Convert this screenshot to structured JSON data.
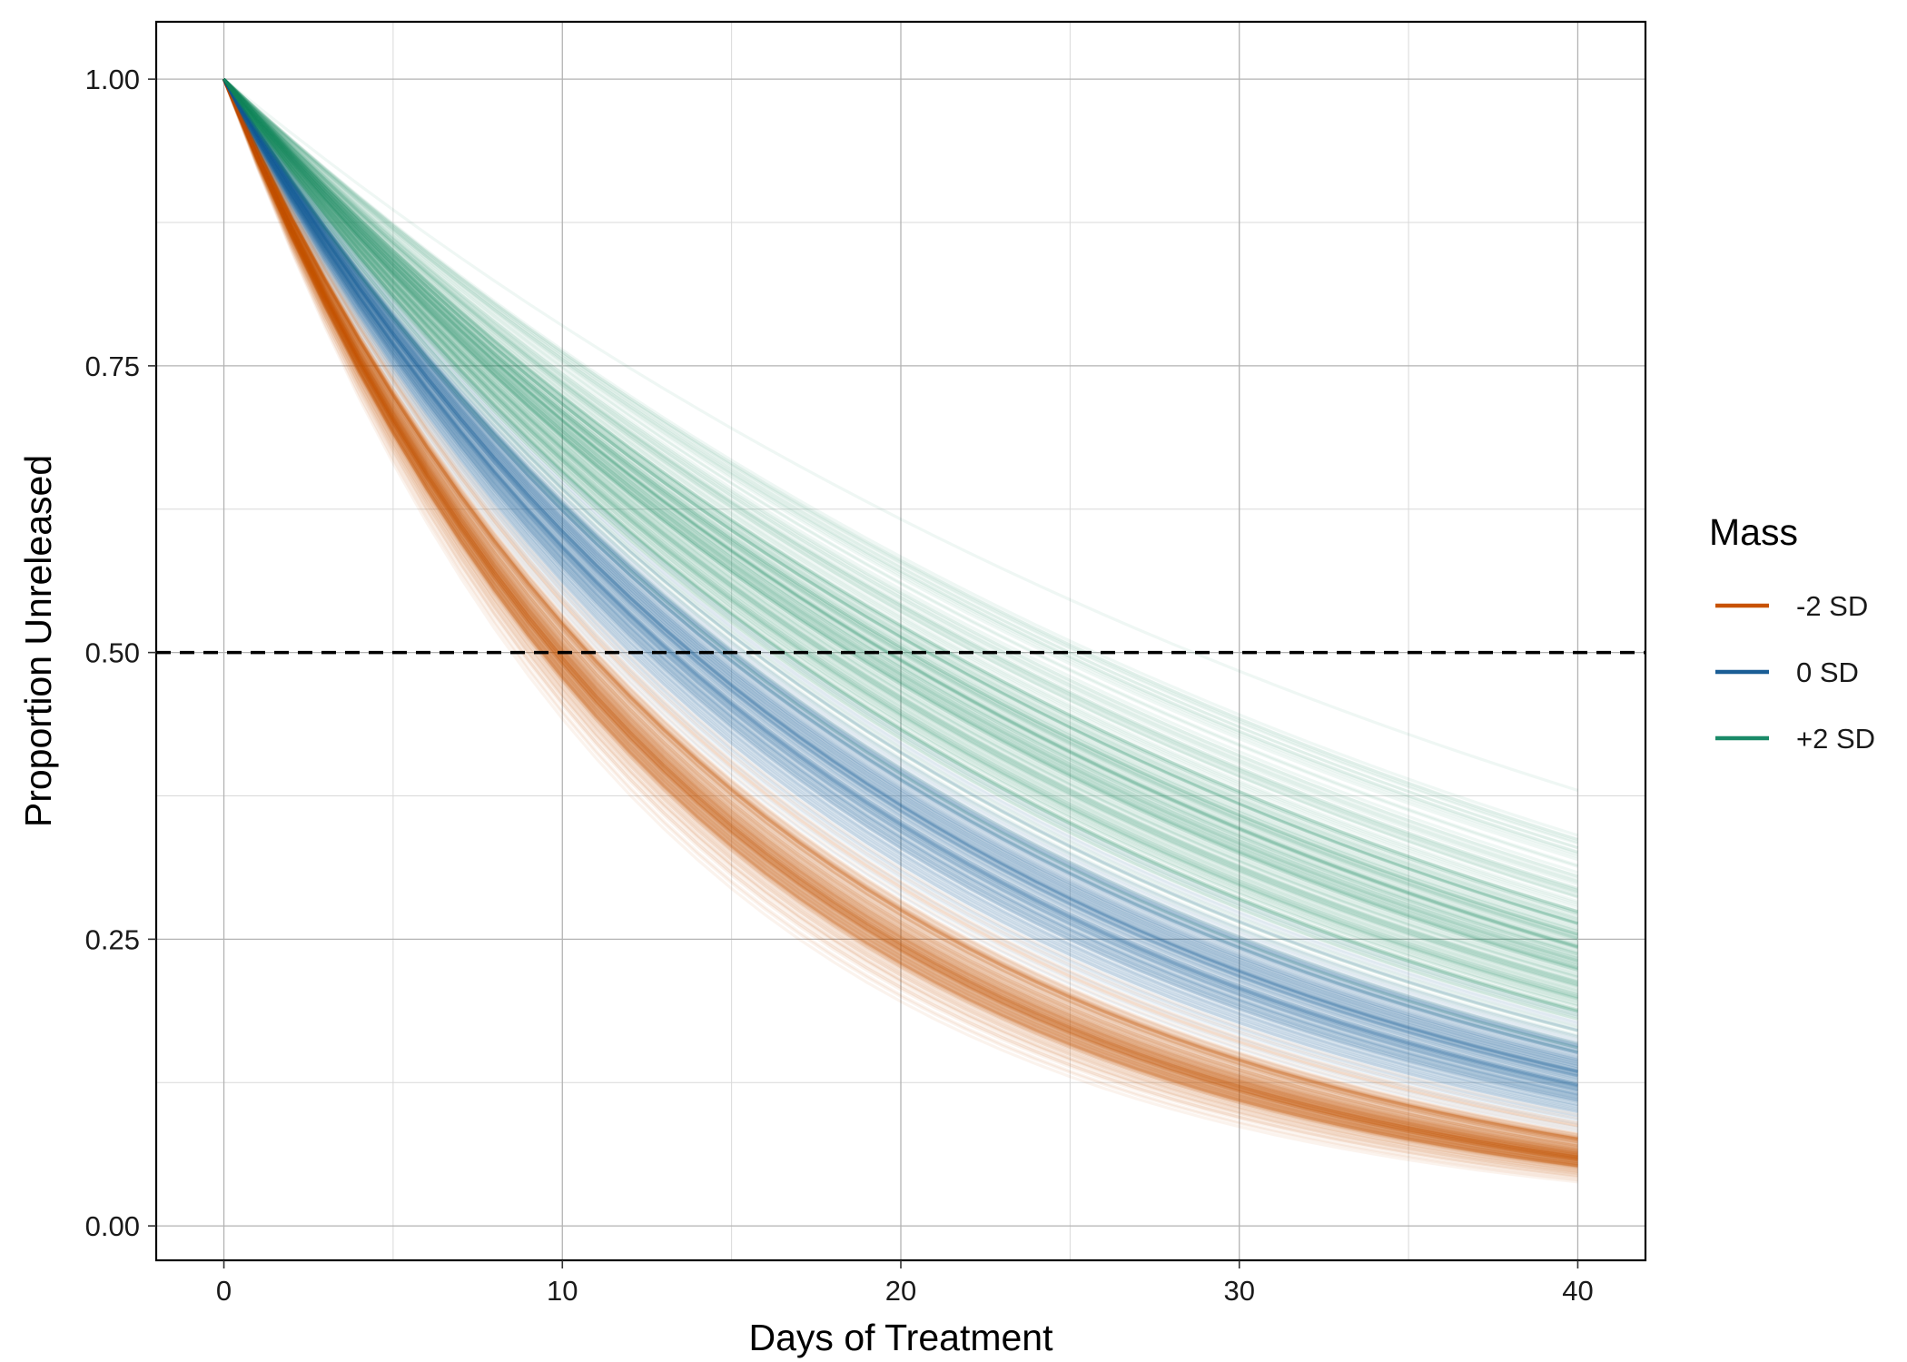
{
  "chart_data": {
    "type": "line",
    "title": "",
    "xlabel": "Days of Treatment",
    "ylabel": "Proportion Unreleased",
    "xlim": [
      -2,
      42
    ],
    "ylim": [
      -0.03,
      1.05
    ],
    "x_ticks": [
      0,
      10,
      20,
      30,
      40
    ],
    "x_tick_labels": [
      "0",
      "10",
      "20",
      "30",
      "40"
    ],
    "y_ticks": [
      0,
      0.25,
      0.5,
      0.75,
      1
    ],
    "y_tick_labels": [
      "0.00",
      "0.25",
      "0.50",
      "0.75",
      "1.00"
    ],
    "grid": true,
    "reference_line": {
      "y": 0.5,
      "style": "dashed",
      "color": "#000000"
    },
    "legend": {
      "title": "Mass",
      "placement": "right"
    },
    "x_range": [
      0,
      40
    ],
    "series": [
      {
        "name": "-2 SD",
        "color": "#C85200",
        "draws": 200,
        "y_at_x40_range": [
          0.025,
          0.11
        ],
        "y_at_x40_median": 0.062
      },
      {
        "name": "0 SD",
        "color": "#1A5E96",
        "draws": 200,
        "y_at_x40_range": [
          0.06,
          0.24
        ],
        "y_at_x40_median": 0.13
      },
      {
        "name": "+2 SD",
        "color": "#1A8A68",
        "draws": 200,
        "y_at_x40_range": [
          0.1,
          0.46
        ],
        "y_at_x40_median": 0.24
      }
    ]
  }
}
